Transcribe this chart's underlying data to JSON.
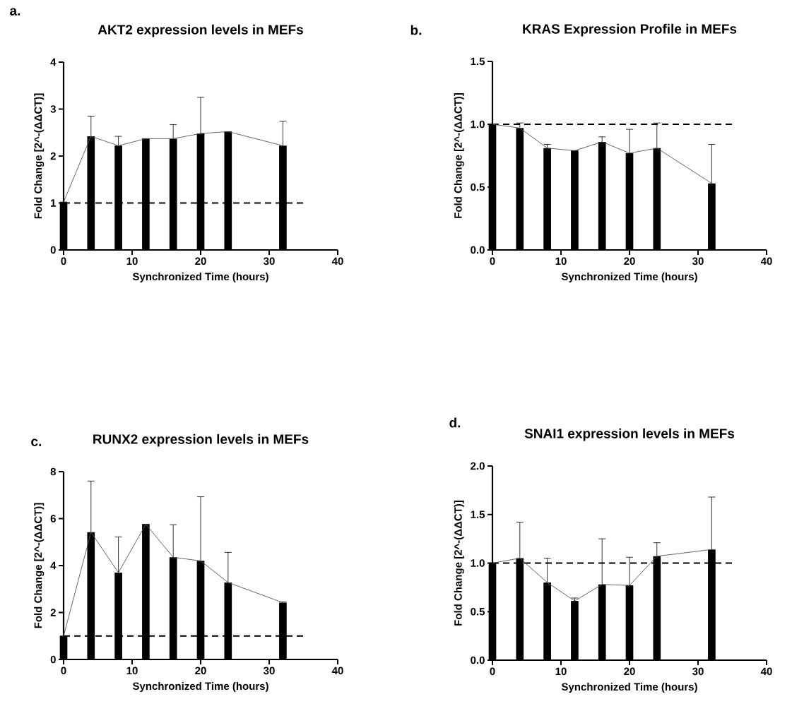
{
  "chart_data": [
    {
      "type": "bar",
      "title": "AKT2 expression levels in MEFs",
      "xlabel": "Synchronized Time (hours)",
      "ylabel": "Fold Change [2^-(ΔΔCT)]",
      "annotations": [
        "a."
      ],
      "x": [
        0,
        4,
        8,
        12,
        16,
        20,
        24,
        32
      ],
      "xlim": [
        0,
        40
      ],
      "xticks": [
        0,
        10,
        20,
        30,
        40
      ],
      "ylim": [
        0,
        4
      ],
      "yticks": [
        0,
        1,
        2,
        3,
        4
      ],
      "series": [
        {
          "color": "#000000",
          "values": [
            1.02,
            2.42,
            2.22,
            2.37,
            2.37,
            2.48,
            2.52,
            2.22
          ],
          "errors": [
            null,
            [
              2.42,
              2.85
            ],
            [
              2.22,
              2.42
            ],
            null,
            [
              2.37,
              2.67
            ],
            [
              2.48,
              3.25
            ],
            null,
            [
              2.22,
              2.74
            ]
          ]
        },
        {
          "type": "line",
          "color": "#555555",
          "values": [
            1.02,
            2.42,
            2.22,
            2.37,
            2.37,
            2.48,
            2.52,
            2.22
          ]
        }
      ],
      "ref_lines": [
        {
          "axis": "y",
          "value": 1,
          "line_style": "dashed",
          "color": "#000000"
        }
      ]
    },
    {
      "type": "bar",
      "title": "KRAS Expression Profile in MEFs",
      "xlabel": "Synchronized Time (hours)",
      "ylabel": "Fold Change [2^-(ΔΔCT)]",
      "annotations": [
        "b."
      ],
      "x": [
        0,
        4,
        8,
        12,
        16,
        20,
        24,
        32
      ],
      "xlim": [
        0,
        40
      ],
      "xticks": [
        0,
        10,
        20,
        30,
        40
      ],
      "ylim": [
        0,
        1.5
      ],
      "yticks": [
        {
          "value": 0,
          "label": "0.0"
        },
        {
          "value": 0.5,
          "label": "0.5"
        },
        {
          "value": 1,
          "label": "1.0"
        },
        {
          "value": 1.5,
          "label": "1.5"
        }
      ],
      "series": [
        {
          "color": "#000000",
          "values": [
            1.0,
            0.97,
            0.81,
            0.79,
            0.86,
            0.77,
            0.81,
            0.53
          ],
          "errors": [
            null,
            [
              0.97,
              1.01
            ],
            [
              0.81,
              0.84
            ],
            null,
            [
              0.86,
              0.9
            ],
            [
              0.77,
              0.96
            ],
            [
              0.81,
              1.01
            ],
            [
              0.53,
              0.84
            ]
          ]
        },
        {
          "type": "line",
          "color": "#555555",
          "values": [
            1.0,
            0.97,
            0.81,
            0.79,
            0.86,
            0.77,
            0.81,
            0.53
          ]
        }
      ],
      "ref_lines": [
        {
          "axis": "y",
          "value": 1,
          "line_style": "dashed",
          "color": "#000000"
        }
      ]
    },
    {
      "type": "bar",
      "title": "RUNX2 expression levels in MEFs",
      "xlabel": "Synchronized Time (hours)",
      "ylabel": "Fold Change [2^-(ΔΔCT)]",
      "annotations": [
        "c."
      ],
      "x": [
        0,
        4,
        8,
        12,
        16,
        20,
        24,
        32
      ],
      "xlim": [
        0,
        40
      ],
      "xticks": [
        0,
        10,
        20,
        30,
        40
      ],
      "ylim": [
        0,
        8
      ],
      "yticks": [
        0,
        2,
        4,
        6,
        8
      ],
      "series": [
        {
          "color": "#000000",
          "values": [
            1.0,
            5.42,
            3.7,
            5.76,
            4.35,
            4.2,
            3.28,
            2.42
          ],
          "errors": [
            null,
            [
              5.42,
              7.6
            ],
            [
              3.7,
              5.22
            ],
            null,
            [
              4.35,
              5.74
            ],
            [
              4.2,
              6.93
            ],
            [
              3.28,
              4.56
            ],
            [
              2.42,
              2.45
            ]
          ]
        },
        {
          "type": "line",
          "color": "#555555",
          "values": [
            1.0,
            5.42,
            3.7,
            5.76,
            4.35,
            4.2,
            3.28,
            2.42
          ]
        }
      ],
      "ref_lines": [
        {
          "axis": "y",
          "value": 1,
          "line_style": "dashed",
          "color": "#000000"
        }
      ]
    },
    {
      "type": "bar",
      "title": "SNAI1 expression levels in MEFs",
      "xlabel": "Synchronized Time (hours)",
      "ylabel": "Fold Change [2^-(ΔΔCT)]",
      "annotations": [
        "d."
      ],
      "x": [
        0,
        4,
        8,
        12,
        16,
        20,
        24,
        32
      ],
      "xlim": [
        0,
        40
      ],
      "xticks": [
        0,
        10,
        20,
        30,
        40
      ],
      "ylim": [
        0,
        2
      ],
      "yticks": [
        {
          "value": 0,
          "label": "0.0"
        },
        {
          "value": 0.5,
          "label": "0.5"
        },
        {
          "value": 1,
          "label": "1.0"
        },
        {
          "value": 1.5,
          "label": "1.5"
        },
        {
          "value": 2,
          "label": "2.0"
        }
      ],
      "series": [
        {
          "color": "#000000",
          "values": [
            1.0,
            1.05,
            0.8,
            0.61,
            0.78,
            0.77,
            1.07,
            1.14
          ],
          "errors": [
            null,
            [
              1.05,
              1.42
            ],
            [
              0.8,
              1.05
            ],
            [
              0.61,
              0.64
            ],
            [
              0.78,
              1.25
            ],
            [
              0.77,
              1.06
            ],
            [
              1.07,
              1.21
            ],
            [
              1.14,
              1.68
            ]
          ]
        },
        {
          "type": "line",
          "color": "#555555",
          "values": [
            1.0,
            1.05,
            0.8,
            0.61,
            0.78,
            0.77,
            1.07,
            1.14
          ]
        }
      ],
      "ref_lines": [
        {
          "axis": "y",
          "value": 1,
          "line_style": "dashed",
          "color": "#000000"
        }
      ]
    }
  ]
}
